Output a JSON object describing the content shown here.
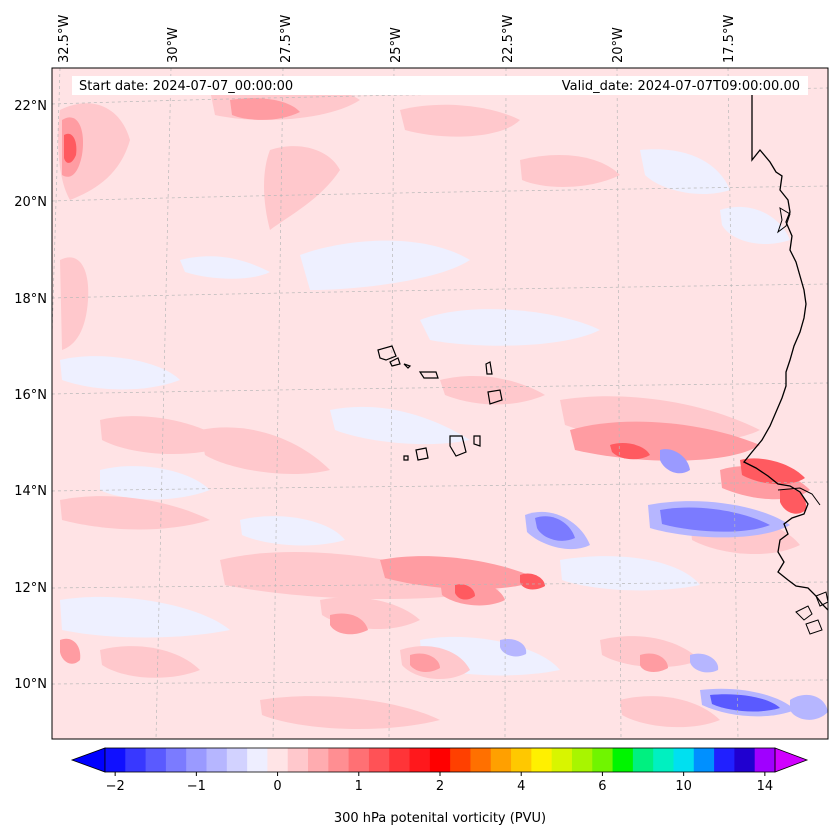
{
  "header": {
    "start_date": "Start date: 2024-07-07_00:00:00",
    "valid_date": "Valid_date: 2024-07-07T09:00:00.00"
  },
  "map": {
    "lon_labels": [
      "32.5°W",
      "30°W",
      "27.5°W",
      "25°W",
      "22.5°W",
      "20°W",
      "17.5°W"
    ],
    "lat_labels": [
      "22°N",
      "20°N",
      "18°N",
      "16°N",
      "14°N",
      "12°N",
      "10°N"
    ],
    "lon_range": [
      -32.6,
      -15.4
    ],
    "lat_range": [
      8.9,
      22.8
    ],
    "field_background": "#ffe3e5"
  },
  "colorbar": {
    "label": "300 hPa potenital vorticity (PVU)",
    "ticks": [
      "−2",
      "−1",
      "0",
      "1",
      "2",
      "4",
      "6",
      "10",
      "14"
    ],
    "colors": [
      "#1010ff",
      "#3838ff",
      "#5a5aff",
      "#7b7bff",
      "#9a9aff",
      "#b6b6ff",
      "#d2d2ff",
      "#eeeeff",
      "#ffe4e6",
      "#ffc8cc",
      "#ffacb0",
      "#ff8e92",
      "#ff7074",
      "#ff5256",
      "#ff3438",
      "#ff181c",
      "#ff0000",
      "#ff4000",
      "#ff7000",
      "#ffa000",
      "#ffc800",
      "#fff000",
      "#d8f500",
      "#a8f500",
      "#70f500",
      "#00f500",
      "#00f080",
      "#00f0c0",
      "#00e0f0",
      "#0090ff",
      "#2020ff",
      "#2000d0",
      "#a000ff"
    ],
    "extend_left": "#0000ff",
    "extend_right": "#d000ff"
  }
}
